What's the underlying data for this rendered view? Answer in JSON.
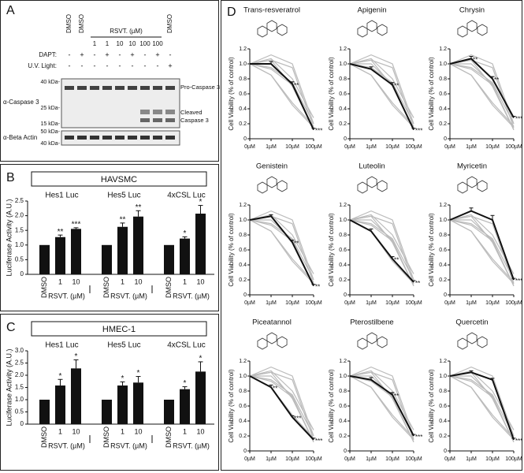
{
  "panel_labels": [
    "A",
    "B",
    "C",
    "D"
  ],
  "western_blot": {
    "lanes": [
      "DMSO",
      "DMSO",
      "1",
      "1",
      "10",
      "10",
      "100",
      "100",
      "DMSO"
    ],
    "rsvt_label": "RSVT. (µM)",
    "treatments": [
      {
        "label": "DAPT:",
        "signs": [
          "-",
          "+",
          "-",
          "+",
          "-",
          "+",
          "-",
          "+",
          "-"
        ]
      },
      {
        "label": "U.V. Light:",
        "signs": [
          "-",
          "-",
          "-",
          "-",
          "-",
          "-",
          "-",
          "-",
          "+"
        ]
      }
    ],
    "caspase_markers": [
      "40 kDa-",
      "25 kDa-",
      "15 kDa-"
    ],
    "actin_markers": [
      "50 kDa-",
      "40 kDa-"
    ],
    "caspase_antibody": "α-Caspase 3",
    "actin_antibody": "α-Beta Actin",
    "pro_band": "Pro-Caspase 3",
    "cleaved_band": [
      "Cleaved",
      "Caspase 3"
    ]
  },
  "chart_data": [
    {
      "type": "bar",
      "title": "HAVSMC",
      "y_label": "Luciferase Activity (A.U.)",
      "ylim": [
        0,
        2.5
      ],
      "yticks": [
        0,
        0.5,
        {
          "value": 1,
          "label": "1.0"
        },
        1.5,
        {
          "value": 2,
          "label": "2.0"
        },
        2.5
      ],
      "categories": [
        "DMSO",
        "1",
        "10"
      ],
      "x_label": "RSVT. (µM)",
      "color": "#111111",
      "groups": [
        {
          "name": "Hes1 Luc",
          "values": [
            1,
            1.27,
            1.55
          ],
          "errors": [
            null,
            0.07,
            0.04
          ],
          "annotations": [
            null,
            "**",
            "***"
          ]
        },
        {
          "name": "Hes5 Luc",
          "values": [
            1,
            1.62,
            1.97
          ],
          "errors": [
            null,
            0.13,
            0.2
          ],
          "annotations": [
            null,
            "**",
            "**"
          ]
        },
        {
          "name": "4xCSL Luc",
          "values": [
            1,
            1.22,
            2.07
          ],
          "errors": [
            null,
            0.06,
            0.28
          ],
          "annotations": [
            null,
            "*",
            "*"
          ]
        }
      ]
    },
    {
      "type": "bar",
      "title": "HMEC-1",
      "y_label": "Luciferase Activity (A.U.)",
      "ylim": [
        0,
        3
      ],
      "yticks": [
        0,
        0.5,
        {
          "value": 1,
          "label": "1.0"
        },
        1.5,
        {
          "value": 2,
          "label": "2.0"
        },
        2.5,
        {
          "value": 3,
          "label": "3.0"
        }
      ],
      "categories": [
        "DMSO",
        "1",
        "10"
      ],
      "x_label": "RSVT. (µM)",
      "color": "#111111",
      "groups": [
        {
          "name": "Hes1 Luc",
          "values": [
            1,
            1.58,
            2.28
          ],
          "errors": [
            null,
            0.25,
            0.35
          ],
          "annotations": [
            null,
            "*",
            "*"
          ]
        },
        {
          "name": "Hes5 Luc",
          "values": [
            1,
            1.58,
            1.7
          ],
          "errors": [
            null,
            0.15,
            0.25
          ],
          "annotations": [
            null,
            "*",
            "*"
          ]
        },
        {
          "name": "4xCSL Luc",
          "values": [
            1,
            1.43,
            2.15
          ],
          "errors": [
            null,
            0.1,
            0.4
          ],
          "annotations": [
            null,
            "*",
            "*"
          ]
        }
      ]
    },
    {
      "type": "line",
      "title": "Trans-resveratrol",
      "categories": [
        "0µM",
        "1µM",
        "10µM",
        "100µM"
      ],
      "y_label": "Cell Viability (% of control)",
      "ylim": [
        0,
        1.2
      ],
      "yticks": [
        0,
        0.2,
        0.4,
        0.6,
        0.8,
        {
          "value": 1,
          "label": "1.0"
        },
        1.2
      ],
      "color": "#111111",
      "comparison_color": "#bbbbbb",
      "values": [
        1,
        1.0,
        0.73,
        0.12
      ],
      "errors": [
        null,
        0.03,
        0.03,
        0.02
      ],
      "annotations": [
        null,
        null,
        "**",
        "***"
      ]
    },
    {
      "type": "line",
      "title": "Apigenin",
      "categories": [
        "0µM",
        "1µM",
        "10µM",
        "100µM"
      ],
      "y_label": "Cell Viability (% of control)",
      "ylim": [
        0,
        1.2
      ],
      "yticks": [
        0,
        0.2,
        0.4,
        0.6,
        0.8,
        {
          "value": 1,
          "label": "1.0"
        },
        1.2
      ],
      "color": "#111111",
      "comparison_color": "#bbbbbb",
      "values": [
        1,
        0.93,
        0.72,
        0.12
      ],
      "errors": [
        null,
        0.03,
        0.03,
        0.02
      ],
      "annotations": [
        null,
        null,
        "**",
        "***"
      ]
    },
    {
      "type": "line",
      "title": "Chrysin",
      "categories": [
        "0µM",
        "1µM",
        "10µM",
        "100µM"
      ],
      "y_label": "Cell Viability (% of control)",
      "ylim": [
        0,
        1.2
      ],
      "yticks": [
        0,
        0.2,
        0.4,
        0.6,
        0.8,
        {
          "value": 1,
          "label": "1.0"
        },
        1.2
      ],
      "color": "#111111",
      "comparison_color": "#bbbbbb",
      "values": [
        1,
        1.07,
        0.8,
        0.28
      ],
      "errors": [
        null,
        0.03,
        0.03,
        0.02
      ],
      "annotations": [
        null,
        "**",
        "**",
        "***"
      ]
    },
    {
      "type": "line",
      "title": "Genistein",
      "categories": [
        "0µM",
        "1µM",
        "10µM",
        "100µM"
      ],
      "y_label": "Cell Viability (% of control)",
      "ylim": [
        0,
        1.2
      ],
      "yticks": [
        0,
        0.2,
        0.4,
        0.6,
        0.8,
        {
          "value": 1,
          "label": "1.0"
        },
        1.2
      ],
      "color": "#111111",
      "comparison_color": "#bbbbbb",
      "values": [
        1,
        1.05,
        0.7,
        0.12
      ],
      "errors": [
        null,
        0.02,
        0.03,
        0.02
      ],
      "annotations": [
        null,
        null,
        "**",
        "**"
      ]
    },
    {
      "type": "line",
      "title": "Luteolin",
      "categories": [
        "0µM",
        "1µM",
        "10µM",
        "100µM"
      ],
      "y_label": "Cell Viability (% of control)",
      "ylim": [
        0,
        1.2
      ],
      "yticks": [
        0,
        0.2,
        0.4,
        0.6,
        0.8,
        {
          "value": 1,
          "label": "1.0"
        },
        1.2
      ],
      "color": "#111111",
      "comparison_color": "#bbbbbb",
      "values": [
        1,
        0.85,
        0.48,
        0.17
      ],
      "errors": [
        null,
        0.03,
        0.03,
        0.02
      ],
      "annotations": [
        null,
        null,
        "**",
        "**"
      ]
    },
    {
      "type": "line",
      "title": "Myricetin",
      "categories": [
        "0µM",
        "1µM",
        "10µM",
        "100µM"
      ],
      "y_label": "Cell Viability (% of control)",
      "ylim": [
        0,
        1.2
      ],
      "yticks": [
        0,
        0.2,
        0.4,
        0.6,
        0.8,
        {
          "value": 1,
          "label": "1.0"
        },
        1.2
      ],
      "color": "#111111",
      "comparison_color": "#bbbbbb",
      "values": [
        1,
        1.12,
        1.0,
        0.2
      ],
      "errors": [
        null,
        0.04,
        0.06,
        0.02
      ],
      "annotations": [
        null,
        null,
        null,
        "***"
      ]
    },
    {
      "type": "line",
      "title": "Piceatannol",
      "categories": [
        "0µM",
        "1µM",
        "10µM",
        "100µM"
      ],
      "y_label": "Cell Viability (% of control)",
      "ylim": [
        0,
        1.2
      ],
      "yticks": [
        0,
        0.2,
        0.4,
        0.6,
        0.8,
        {
          "value": 1,
          "label": "1.0"
        },
        1.2
      ],
      "color": "#111111",
      "comparison_color": "#bbbbbb",
      "values": [
        1,
        0.85,
        0.45,
        0.15
      ],
      "errors": [
        null,
        0.03,
        0.02,
        0.02
      ],
      "annotations": [
        null,
        "**",
        "***",
        "***"
      ]
    },
    {
      "type": "line",
      "title": "Pterostilbene",
      "categories": [
        "0µM",
        "1µM",
        "10µM",
        "100µM"
      ],
      "y_label": "Cell Viability (% of control)",
      "ylim": [
        0,
        1.2
      ],
      "yticks": [
        0,
        0.2,
        0.4,
        0.6,
        0.8,
        {
          "value": 1,
          "label": "1.0"
        },
        1.2
      ],
      "color": "#111111",
      "comparison_color": "#bbbbbb",
      "values": [
        1,
        0.95,
        0.75,
        0.2
      ],
      "errors": [
        null,
        0.03,
        0.03,
        0.02
      ],
      "annotations": [
        null,
        null,
        "**",
        "***"
      ]
    },
    {
      "type": "line",
      "title": "Quercetin",
      "categories": [
        "0µM",
        "1µM",
        "10µM",
        "100µM"
      ],
      "y_label": "Cell Viability (% of control)",
      "ylim": [
        0,
        1.2
      ],
      "yticks": [
        0,
        0.2,
        0.4,
        0.6,
        0.8,
        {
          "value": 1,
          "label": "1.0"
        },
        1.2
      ],
      "color": "#111111",
      "comparison_color": "#bbbbbb",
      "values": [
        1,
        1.05,
        0.95,
        0.15
      ],
      "errors": [
        null,
        0.02,
        0.02,
        0.02
      ],
      "annotations": [
        null,
        null,
        null,
        "***"
      ]
    }
  ]
}
